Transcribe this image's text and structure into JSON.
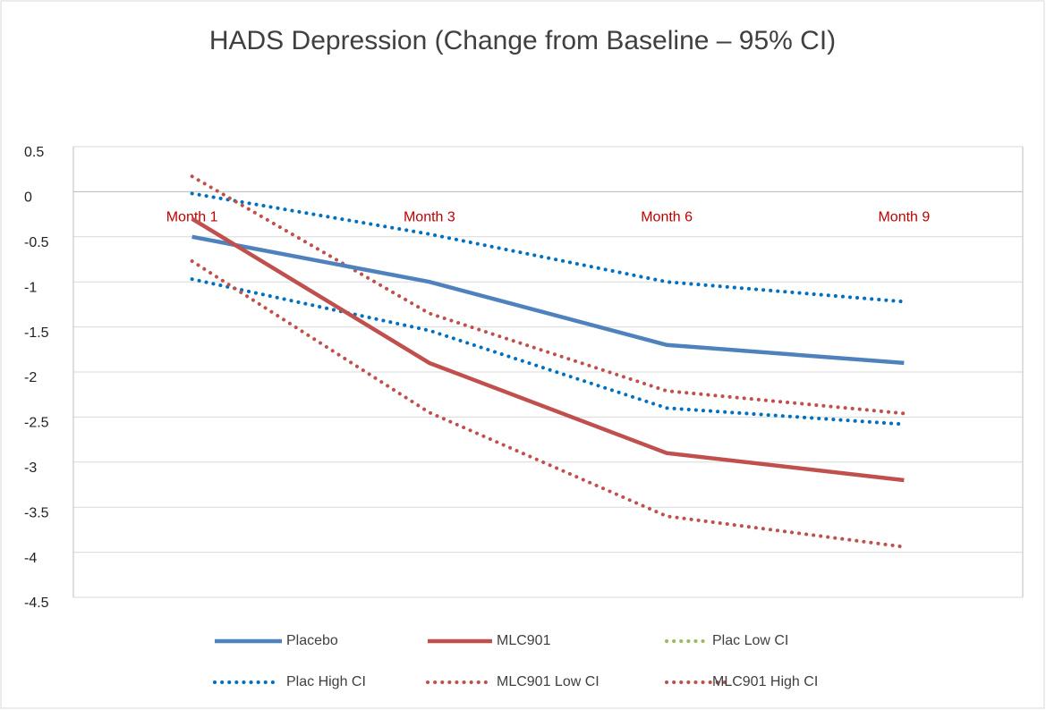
{
  "chart_data": {
    "type": "line",
    "title": "HADS Depression (Change from Baseline – 95% CI)",
    "categories": [
      "Month 1",
      "Month 3",
      "Month 6",
      "Month 9"
    ],
    "series": [
      {
        "name": "Placebo",
        "color": "#4f81bd",
        "style": "solid",
        "values": [
          -0.5,
          -1.0,
          -1.7,
          -1.9
        ]
      },
      {
        "name": "MLC901",
        "color": "#c0504d",
        "style": "solid",
        "values": [
          -0.3,
          -1.9,
          -2.9,
          -3.2
        ]
      },
      {
        "name": "Plac Low CI",
        "color": "#0070c0",
        "legend_color": "#9bbb59",
        "style": "dotted",
        "values": [
          -0.97,
          -1.54,
          -2.4,
          -2.58
        ]
      },
      {
        "name": "Plac High CI",
        "color": "#0070c0",
        "style": "dotted",
        "values": [
          -0.02,
          -0.47,
          -1.0,
          -1.22
        ]
      },
      {
        "name": "MLC901 Low CI",
        "color": "#c0504d",
        "style": "dotted",
        "values": [
          -0.77,
          -2.45,
          -3.6,
          -3.94
        ]
      },
      {
        "name": "MLC901 High CI",
        "color": "#c0504d",
        "style": "dotted",
        "values": [
          0.17,
          -1.35,
          -2.21,
          -2.46
        ]
      }
    ],
    "ylim": [
      -4.5,
      0.5
    ],
    "yticks": [
      0.5,
      0,
      -0.5,
      -1,
      -1.5,
      -2,
      -2.5,
      -3,
      -3.5,
      -4,
      -4.5
    ],
    "grid": true,
    "category_label_color": "#c00000",
    "legend": "bottom"
  }
}
